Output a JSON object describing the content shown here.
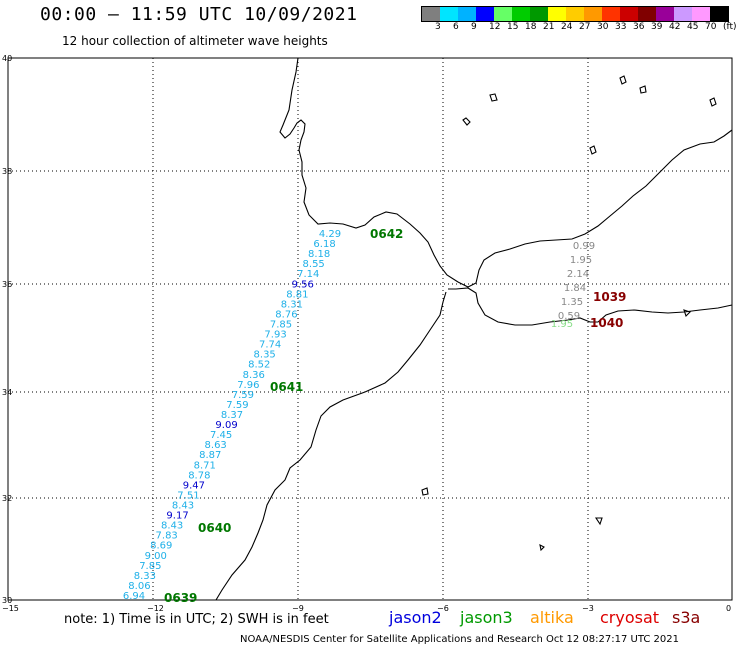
{
  "header": {
    "title": "00:00 – 11:59 UTC 10/09/2021",
    "subtitle": "12 hour collection of altimeter wave heights"
  },
  "legend": {
    "swatches": [
      "#7f7f7f",
      "#00e5ff",
      "#00b2ff",
      "#0000ff",
      "#66ff66",
      "#00cc00",
      "#009900",
      "#ffff00",
      "#ffcc00",
      "#ff9900",
      "#ff3300",
      "#cc0000",
      "#800000",
      "#990099",
      "#cc99ff",
      "#ff99ff",
      "#000000"
    ],
    "labels": [
      "3",
      "6",
      "9",
      "12",
      "15",
      "18",
      "21",
      "24",
      "27",
      "30",
      "33",
      "36",
      "39",
      "42",
      "45",
      "70",
      "(ft)"
    ]
  },
  "axes": {
    "lat_labels": [
      "40",
      "38",
      "36",
      "34",
      "32",
      "30"
    ],
    "lon_labels": [
      "−15",
      "−12",
      "−9",
      "−6",
      "−3",
      "0"
    ]
  },
  "jason3_track": {
    "color_light": "#1fb0e8",
    "color_dark": "#0000cc",
    "values": [
      {
        "v": "4.29",
        "c": "light"
      },
      {
        "v": "6.18",
        "c": "light"
      },
      {
        "v": "8.18",
        "c": "light"
      },
      {
        "v": "8.55",
        "c": "light"
      },
      {
        "v": "7.14",
        "c": "light"
      },
      {
        "v": "9.56",
        "c": "dark"
      },
      {
        "v": "8.81",
        "c": "light"
      },
      {
        "v": "8.31",
        "c": "light"
      },
      {
        "v": "8.76",
        "c": "light"
      },
      {
        "v": "7.85",
        "c": "light"
      },
      {
        "v": "7.93",
        "c": "light"
      },
      {
        "v": "7.74",
        "c": "light"
      },
      {
        "v": "8.35",
        "c": "light"
      },
      {
        "v": "8.52",
        "c": "light"
      },
      {
        "v": "8.36",
        "c": "light"
      },
      {
        "v": "7.96",
        "c": "light"
      },
      {
        "v": "7.59",
        "c": "light"
      },
      {
        "v": "7.59",
        "c": "light"
      },
      {
        "v": "8.37",
        "c": "light"
      },
      {
        "v": "9.09",
        "c": "dark"
      },
      {
        "v": "7.45",
        "c": "light"
      },
      {
        "v": "8.63",
        "c": "light"
      },
      {
        "v": "8.87",
        "c": "light"
      },
      {
        "v": "8.71",
        "c": "light"
      },
      {
        "v": "8.78",
        "c": "light"
      },
      {
        "v": "9.47",
        "c": "dark"
      },
      {
        "v": "7.51",
        "c": "light"
      },
      {
        "v": "8.43",
        "c": "light"
      },
      {
        "v": "9.17",
        "c": "dark"
      },
      {
        "v": "8.43",
        "c": "light"
      },
      {
        "v": "7.83",
        "c": "light"
      },
      {
        "v": "8.69",
        "c": "light"
      },
      {
        "v": "9.00",
        "c": "light"
      },
      {
        "v": "7.85",
        "c": "light"
      },
      {
        "v": "8.33",
        "c": "light"
      },
      {
        "v": "8.06",
        "c": "light"
      },
      {
        "v": "6.94",
        "c": "light"
      }
    ],
    "times": [
      "0642",
      "0641",
      "0640",
      "0639"
    ],
    "time_color": "#007700"
  },
  "med_track": {
    "color": "#888888",
    "values": [
      "0.99",
      "1.95",
      "2.14",
      "1.84",
      "1.35",
      "0.59"
    ],
    "extra_value": "1.95",
    "extra_color": "#88dd88",
    "times": [
      "1039",
      "1040"
    ],
    "time_color": "#880000"
  },
  "footer": {
    "note": "note: 1) Time is in UTC; 2) SWH is in feet",
    "satellites": [
      {
        "name": "jason2",
        "color": "#0000dd"
      },
      {
        "name": "jason3",
        "color": "#009900"
      },
      {
        "name": "altika",
        "color": "#ff9900"
      },
      {
        "name": "cryosat",
        "color": "#dd0000"
      },
      {
        "name": "s3a",
        "color": "#880000"
      }
    ],
    "credit": "NOAA/NESDIS Center for Satellite Applications and Research    Oct 12 08:27:17 UTC 2021"
  }
}
